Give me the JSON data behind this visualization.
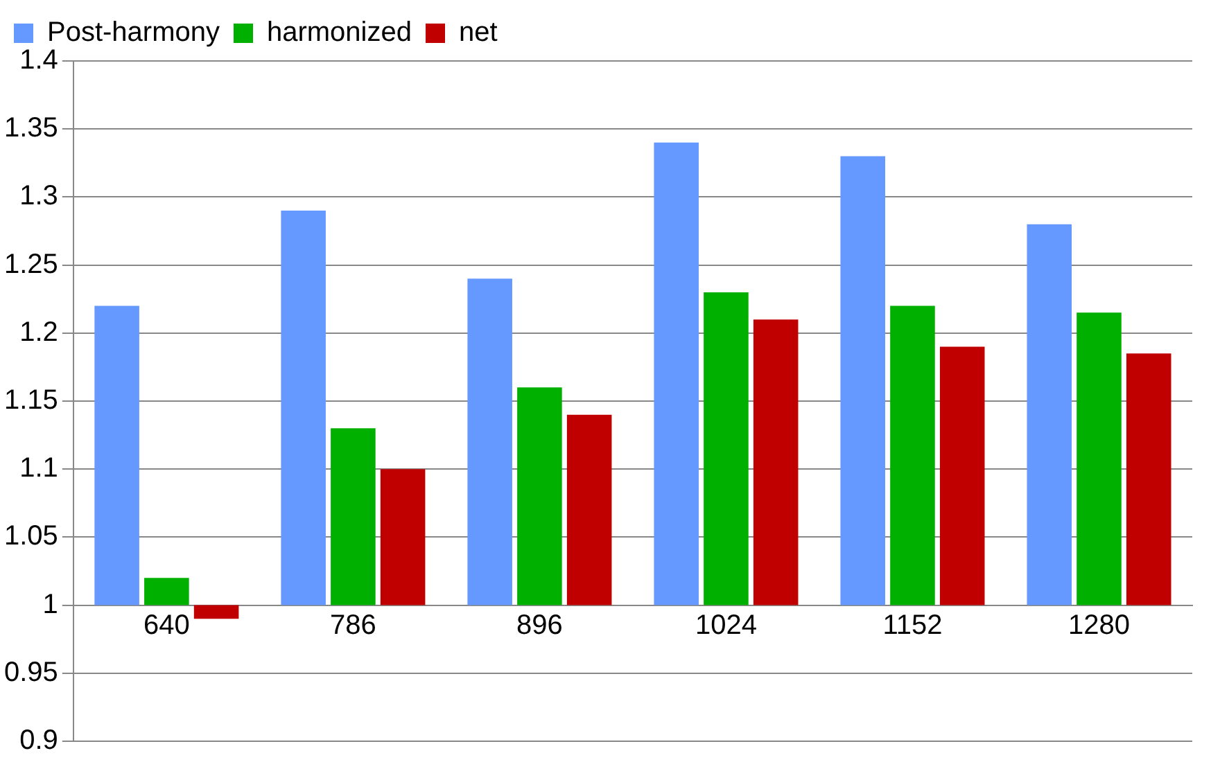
{
  "chart_data": {
    "type": "bar",
    "categories": [
      "640",
      "786",
      "896",
      "1024",
      "1152",
      "1280"
    ],
    "series": [
      {
        "name": "Post-harmony",
        "color": "#6699ff",
        "base": [
          1,
          1,
          1,
          1,
          1,
          1
        ],
        "values": [
          0.22,
          0.29,
          0.24,
          0.34,
          0.33,
          0.28
        ]
      },
      {
        "name": "harmonized",
        "color": "#00b000",
        "base": [
          1,
          1,
          1,
          1,
          1,
          1
        ],
        "values": [
          0.02,
          0.13,
          0.16,
          0.23,
          0.22,
          0.215
        ]
      },
      {
        "name": "net",
        "color": "#c00000",
        "base": [
          1,
          1,
          1,
          1,
          1,
          1
        ],
        "values": [
          -0.01,
          0.1,
          0.14,
          0.21,
          0.19,
          0.185
        ]
      }
    ],
    "ylim": [
      0.9,
      1.4
    ],
    "yticks": [
      0.9,
      0.95,
      1,
      1.05,
      1.1,
      1.15,
      1.2,
      1.25,
      1.3,
      1.35,
      1.4
    ],
    "grid": "y",
    "legend": "top left"
  }
}
